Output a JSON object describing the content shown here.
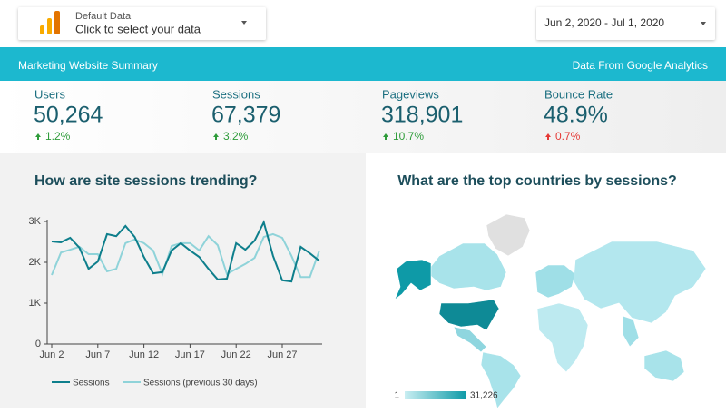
{
  "data_source": {
    "title": "Default Data",
    "prompt": "Click to select your data"
  },
  "date_range": "Jun 2, 2020 - Jul 1, 2020",
  "banner": {
    "title": "Marketing Website Summary",
    "source": "Data From Google Analytics"
  },
  "kpis": [
    {
      "label": "Users",
      "value": "50,264",
      "change": "1.2%"
    },
    {
      "label": "Sessions",
      "value": "67,379",
      "change": "3.2%"
    },
    {
      "label": "Pageviews",
      "value": "318,901",
      "change": "10.7%"
    },
    {
      "label": "Bounce Rate",
      "value": "48.9%",
      "change": "0.7%"
    }
  ],
  "chart_data": {
    "type": "line",
    "title": "How are site sessions trending?",
    "categories": [
      "Jun 2",
      null,
      null,
      null,
      null,
      "Jun 7",
      null,
      null,
      null,
      null,
      "Jun 12",
      null,
      null,
      null,
      null,
      "Jun 17",
      null,
      null,
      null,
      null,
      "Jun 22",
      null,
      null,
      null,
      null,
      "Jun 27",
      null,
      null,
      null,
      null
    ],
    "series": [
      {
        "name": "Sessions",
        "color": "#0e7f8c",
        "values": [
          2510,
          2490,
          2600,
          2360,
          1840,
          2020,
          2690,
          2640,
          2890,
          2620,
          2130,
          1730,
          1760,
          2290,
          2470,
          2290,
          2130,
          1840,
          1580,
          1600,
          2470,
          2310,
          2530,
          2980,
          2160,
          1560,
          1530,
          2380,
          2220,
          2040
        ]
      },
      {
        "name": "Sessions (previous 30 days)",
        "color": "#8fd3d9",
        "values": [
          1690,
          2240,
          2310,
          2380,
          2200,
          2200,
          1780,
          1840,
          2470,
          2560,
          2470,
          2290,
          1710,
          2400,
          2470,
          2470,
          2290,
          2640,
          2420,
          1710,
          1840,
          1960,
          2110,
          2620,
          2690,
          2600,
          2160,
          1640,
          1640,
          2270
        ]
      }
    ],
    "ylim": [
      0,
      3000
    ],
    "yticks": [
      0,
      {
        "value": 1000,
        "label": "1K"
      },
      {
        "value": 2000,
        "label": "2K"
      },
      {
        "value": 3000,
        "label": "3K"
      }
    ]
  },
  "map": {
    "title": "What are the top countries by sessions?",
    "legend_min": "1",
    "legend_max": "31,226"
  }
}
